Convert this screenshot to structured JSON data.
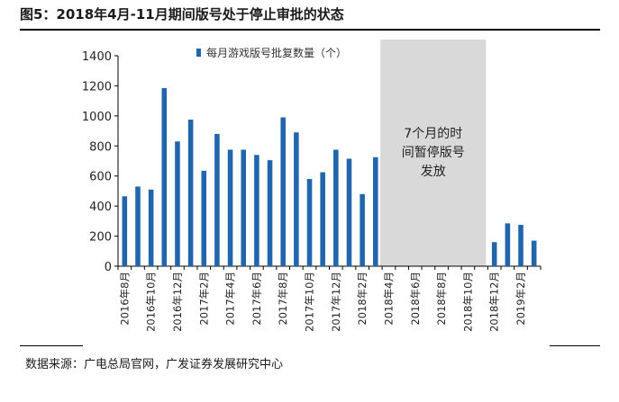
{
  "title": "图5：2018年4月-11月期间版号处于停止审批的状态",
  "source": "数据来源：广电总局官网，广发证券发展研究中心",
  "chart_data": {
    "type": "bar",
    "title": "图5：2018年4月-11月期间版号处于停止审批的状态",
    "legend": "每月游戏版号批复数量（个）",
    "legend_position": "top",
    "ylim": [
      0,
      1400
    ],
    "yticks": [
      0,
      200,
      400,
      600,
      800,
      1000,
      1200,
      1400
    ],
    "grid": false,
    "categories": [
      "2016-08",
      "2016-09",
      "2016-10",
      "2016-11",
      "2016-12",
      "2017-01",
      "2017-02",
      "2017-03",
      "2017-04",
      "2017-05",
      "2017-06",
      "2017-07",
      "2017-08",
      "2017-09",
      "2017-10",
      "2017-11",
      "2017-12",
      "2018-01",
      "2018-02",
      "2018-03",
      "2018-04",
      "2018-05",
      "2018-06",
      "2018-07",
      "2018-08",
      "2018-09",
      "2018-10",
      "2018-11",
      "2018-12",
      "2019-01",
      "2019-02",
      "2019-03"
    ],
    "values": [
      465,
      530,
      510,
      1185,
      830,
      975,
      635,
      880,
      775,
      775,
      740,
      705,
      990,
      890,
      580,
      625,
      775,
      715,
      480,
      725,
      0,
      0,
      0,
      0,
      0,
      0,
      0,
      0,
      160,
      285,
      275,
      170
    ],
    "tick_labels": [
      "2016年8月",
      "2016年10月",
      "2016年12月",
      "2017年2月",
      "2017年4月",
      "2017年6月",
      "2017年8月",
      "2017年10月",
      "2017年12月",
      "2018年2月",
      "2018年4月",
      "2018年6月",
      "2018年8月",
      "2018年10月",
      "2018年12月",
      "2019年2月"
    ],
    "tick_label_every": 2,
    "shaded_range": [
      20,
      27
    ],
    "annotation": [
      "7个月的时",
      "间暂停版号",
      "发放"
    ],
    "colors": {
      "bar": "#2166ac",
      "shade": "#d9d9d9"
    }
  }
}
